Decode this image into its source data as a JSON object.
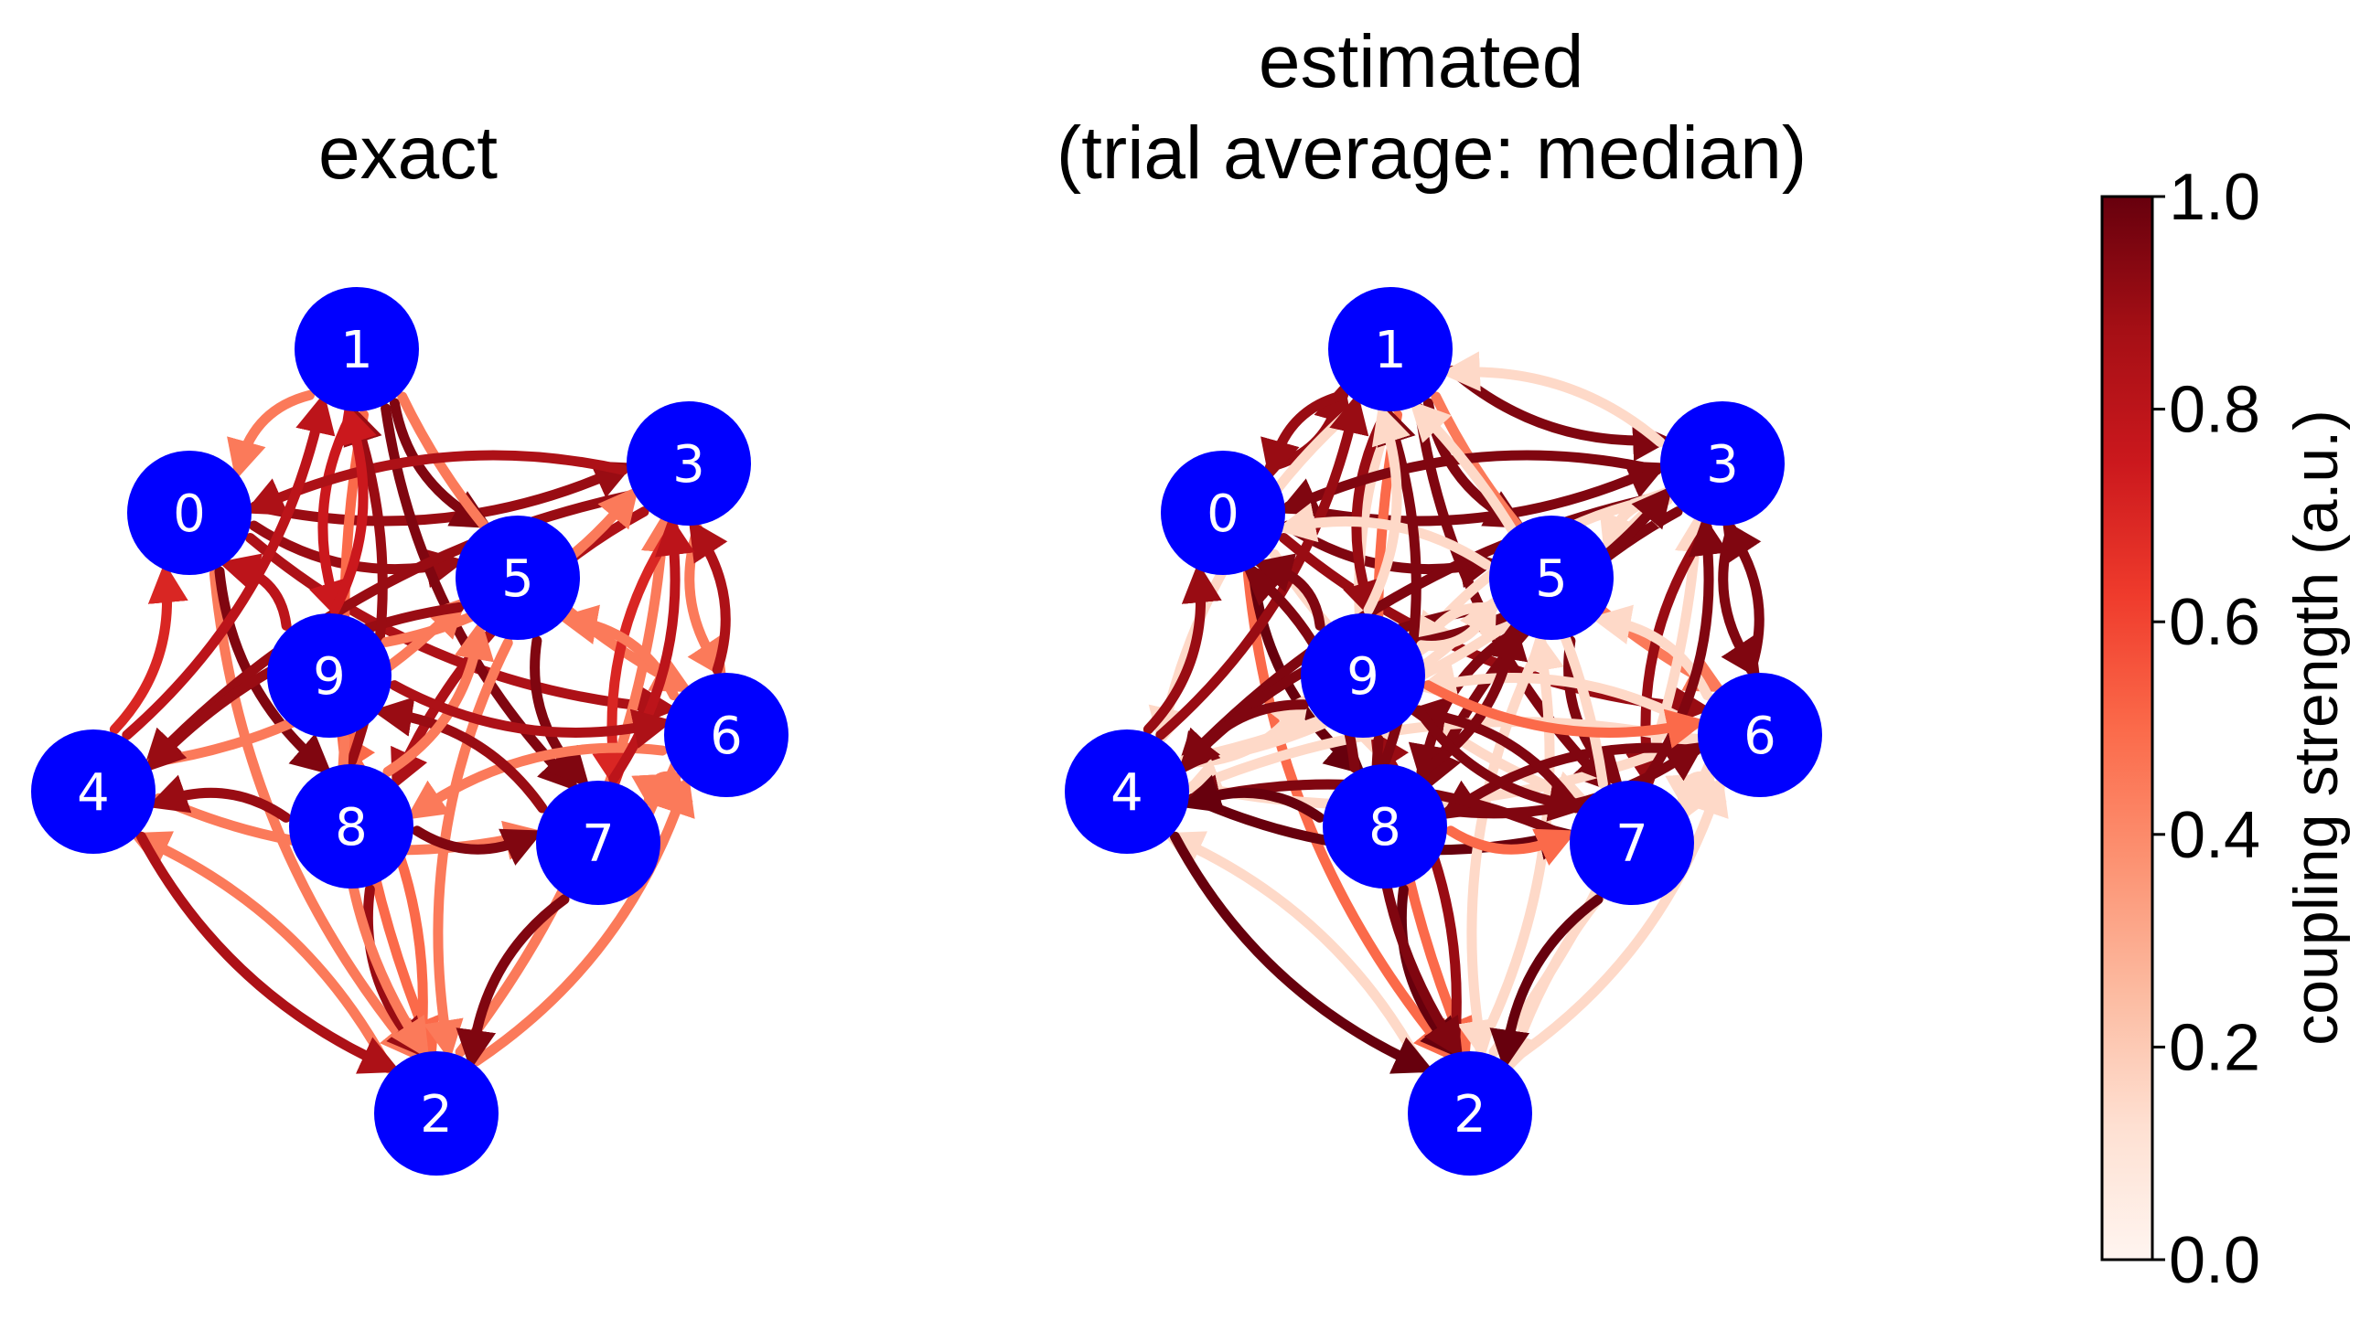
{
  "panels": [
    {
      "id": "exact",
      "title_lines": [
        "exact"
      ],
      "nodes": [
        {
          "label": "0"
        },
        {
          "label": "1"
        },
        {
          "label": "2"
        },
        {
          "label": "3"
        },
        {
          "label": "4"
        },
        {
          "label": "5"
        },
        {
          "label": "6"
        },
        {
          "label": "7"
        },
        {
          "label": "8"
        },
        {
          "label": "9"
        }
      ],
      "edges": [
        {
          "from": 0,
          "to": 2,
          "w": 0.45
        },
        {
          "from": 0,
          "to": 3,
          "w": 0.9
        },
        {
          "from": 0,
          "to": 5,
          "w": 0.9
        },
        {
          "from": 0,
          "to": 6,
          "w": 0.85
        },
        {
          "from": 0,
          "to": 8,
          "w": 0.95
        },
        {
          "from": 1,
          "to": 0,
          "w": 0.45
        },
        {
          "from": 1,
          "to": 2,
          "w": 0.5
        },
        {
          "from": 1,
          "to": 5,
          "w": 0.95
        },
        {
          "from": 1,
          "to": 6,
          "w": 0.45
        },
        {
          "from": 1,
          "to": 7,
          "w": 0.95
        },
        {
          "from": 1,
          "to": 9,
          "w": 0.75
        },
        {
          "from": 2,
          "to": 3,
          "w": 0.45
        },
        {
          "from": 2,
          "to": 4,
          "w": 0.45
        },
        {
          "from": 2,
          "to": 6,
          "w": 0.45
        },
        {
          "from": 2,
          "to": 9,
          "w": 0.5
        },
        {
          "from": 3,
          "to": 0,
          "w": 0.85
        },
        {
          "from": 3,
          "to": 4,
          "w": 0.9
        },
        {
          "from": 3,
          "to": 6,
          "w": 0.45
        },
        {
          "from": 3,
          "to": 7,
          "w": 0.7
        },
        {
          "from": 3,
          "to": 8,
          "w": 0.85
        },
        {
          "from": 4,
          "to": 0,
          "w": 0.7
        },
        {
          "from": 4,
          "to": 1,
          "w": 0.8
        },
        {
          "from": 4,
          "to": 2,
          "w": 0.85
        },
        {
          "from": 4,
          "to": 5,
          "w": 0.45
        },
        {
          "from": 4,
          "to": 7,
          "w": 0.45
        },
        {
          "from": 5,
          "to": 2,
          "w": 0.45
        },
        {
          "from": 5,
          "to": 4,
          "w": 0.9
        },
        {
          "from": 5,
          "to": 7,
          "w": 0.95
        },
        {
          "from": 6,
          "to": 3,
          "w": 0.85
        },
        {
          "from": 6,
          "to": 5,
          "w": 0.45
        },
        {
          "from": 6,
          "to": 7,
          "w": 0.45
        },
        {
          "from": 6,
          "to": 8,
          "w": 0.45
        },
        {
          "from": 7,
          "to": 2,
          "w": 0.95
        },
        {
          "from": 7,
          "to": 3,
          "w": 0.8
        },
        {
          "from": 7,
          "to": 6,
          "w": 0.45
        },
        {
          "from": 7,
          "to": 9,
          "w": 0.9
        },
        {
          "from": 8,
          "to": 1,
          "w": 0.9
        },
        {
          "from": 8,
          "to": 2,
          "w": 0.9
        },
        {
          "from": 8,
          "to": 4,
          "w": 0.9
        },
        {
          "from": 8,
          "to": 5,
          "w": 0.45
        },
        {
          "from": 8,
          "to": 7,
          "w": 0.95
        },
        {
          "from": 9,
          "to": 0,
          "w": 0.8
        },
        {
          "from": 9,
          "to": 1,
          "w": 0.75
        },
        {
          "from": 9,
          "to": 2,
          "w": 0.45
        },
        {
          "from": 9,
          "to": 3,
          "w": 0.45
        },
        {
          "from": 9,
          "to": 6,
          "w": 0.85
        }
      ]
    },
    {
      "id": "estimated",
      "title_lines": [
        "estimated",
        "(trial average: median)"
      ],
      "nodes": [
        {
          "label": "0"
        },
        {
          "label": "1"
        },
        {
          "label": "2"
        },
        {
          "label": "3"
        },
        {
          "label": "4"
        },
        {
          "label": "5"
        },
        {
          "label": "6"
        },
        {
          "label": "7"
        },
        {
          "label": "8"
        },
        {
          "label": "9"
        }
      ],
      "edges": [
        {
          "from": 0,
          "to": 1,
          "w": 0.9
        },
        {
          "from": 0,
          "to": 2,
          "w": 0.5
        },
        {
          "from": 0,
          "to": 3,
          "w": 0.95
        },
        {
          "from": 0,
          "to": 5,
          "w": 0.95
        },
        {
          "from": 0,
          "to": 6,
          "w": 0.9
        },
        {
          "from": 0,
          "to": 7,
          "w": 0.15
        },
        {
          "from": 0,
          "to": 8,
          "w": 1.0
        },
        {
          "from": 1,
          "to": 0,
          "w": 0.9
        },
        {
          "from": 1,
          "to": 2,
          "w": 0.5
        },
        {
          "from": 1,
          "to": 3,
          "w": 0.95
        },
        {
          "from": 1,
          "to": 4,
          "w": 0.15
        },
        {
          "from": 1,
          "to": 5,
          "w": 0.95
        },
        {
          "from": 1,
          "to": 6,
          "w": 0.45
        },
        {
          "from": 1,
          "to": 7,
          "w": 0.95
        },
        {
          "from": 1,
          "to": 8,
          "w": 0.15
        },
        {
          "from": 1,
          "to": 9,
          "w": 0.9
        },
        {
          "from": 2,
          "to": 3,
          "w": 0.15
        },
        {
          "from": 2,
          "to": 4,
          "w": 0.15
        },
        {
          "from": 2,
          "to": 5,
          "w": 0.15
        },
        {
          "from": 2,
          "to": 6,
          "w": 0.15
        },
        {
          "from": 2,
          "to": 9,
          "w": 0.9
        },
        {
          "from": 3,
          "to": 0,
          "w": 0.95
        },
        {
          "from": 3,
          "to": 1,
          "w": 0.15
        },
        {
          "from": 3,
          "to": 4,
          "w": 0.95
        },
        {
          "from": 3,
          "to": 5,
          "w": 0.15
        },
        {
          "from": 3,
          "to": 6,
          "w": 0.95
        },
        {
          "from": 3,
          "to": 7,
          "w": 0.9
        },
        {
          "from": 3,
          "to": 8,
          "w": 0.95
        },
        {
          "from": 3,
          "to": 9,
          "w": 0.15
        },
        {
          "from": 4,
          "to": 0,
          "w": 0.9
        },
        {
          "from": 4,
          "to": 1,
          "w": 0.9
        },
        {
          "from": 4,
          "to": 2,
          "w": 1.0
        },
        {
          "from": 4,
          "to": 3,
          "w": 0.15
        },
        {
          "from": 4,
          "to": 5,
          "w": 0.15
        },
        {
          "from": 4,
          "to": 6,
          "w": 0.15
        },
        {
          "from": 4,
          "to": 7,
          "w": 1.0
        },
        {
          "from": 4,
          "to": 9,
          "w": 0.15
        },
        {
          "from": 5,
          "to": 0,
          "w": 0.15
        },
        {
          "from": 5,
          "to": 2,
          "w": 0.15
        },
        {
          "from": 5,
          "to": 4,
          "w": 0.95
        },
        {
          "from": 5,
          "to": 7,
          "w": 0.95
        },
        {
          "from": 5,
          "to": 8,
          "w": 0.95
        },
        {
          "from": 5,
          "to": 9,
          "w": 0.15
        },
        {
          "from": 6,
          "to": 2,
          "w": 0.15
        },
        {
          "from": 6,
          "to": 3,
          "w": 0.95
        },
        {
          "from": 6,
          "to": 4,
          "w": 0.15
        },
        {
          "from": 6,
          "to": 5,
          "w": 0.15
        },
        {
          "from": 6,
          "to": 7,
          "w": 0.15
        },
        {
          "from": 6,
          "to": 8,
          "w": 0.95
        },
        {
          "from": 6,
          "to": 9,
          "w": 0.15
        },
        {
          "from": 7,
          "to": 1,
          "w": 0.15
        },
        {
          "from": 7,
          "to": 2,
          "w": 1.0
        },
        {
          "from": 7,
          "to": 3,
          "w": 0.95
        },
        {
          "from": 7,
          "to": 4,
          "w": 0.95
        },
        {
          "from": 7,
          "to": 6,
          "w": 0.15
        },
        {
          "from": 7,
          "to": 9,
          "w": 0.95
        },
        {
          "from": 8,
          "to": 0,
          "w": 0.95
        },
        {
          "from": 8,
          "to": 1,
          "w": 0.95
        },
        {
          "from": 8,
          "to": 2,
          "w": 1.0
        },
        {
          "from": 8,
          "to": 4,
          "w": 1.0
        },
        {
          "from": 8,
          "to": 5,
          "w": 0.95
        },
        {
          "from": 8,
          "to": 6,
          "w": 0.95
        },
        {
          "from": 8,
          "to": 7,
          "w": 0.5
        },
        {
          "from": 9,
          "to": 0,
          "w": 0.95
        },
        {
          "from": 9,
          "to": 1,
          "w": 0.15
        },
        {
          "from": 9,
          "to": 2,
          "w": 0.95
        },
        {
          "from": 9,
          "to": 3,
          "w": 0.95
        },
        {
          "from": 9,
          "to": 4,
          "w": 0.95
        },
        {
          "from": 9,
          "to": 5,
          "w": 0.15
        },
        {
          "from": 9,
          "to": 6,
          "w": 0.5
        },
        {
          "from": 9,
          "to": 7,
          "w": 0.95
        }
      ]
    }
  ],
  "colorbar": {
    "label": "coupling strength (a.u.)",
    "ticks": [
      "0.0",
      "0.2",
      "0.4",
      "0.6",
      "0.8",
      "1.0"
    ],
    "min": 0.0,
    "max": 1.0,
    "colormap": "Reds"
  },
  "colors": {
    "node_fill": "#0000ff",
    "node_text": "#ffffff",
    "cmap_stops": [
      "#fff5f0",
      "#fee0d2",
      "#fcbba1",
      "#fc9272",
      "#fb6a4a",
      "#ef3b2c",
      "#cb181d",
      "#a50f15",
      "#67000d"
    ]
  }
}
